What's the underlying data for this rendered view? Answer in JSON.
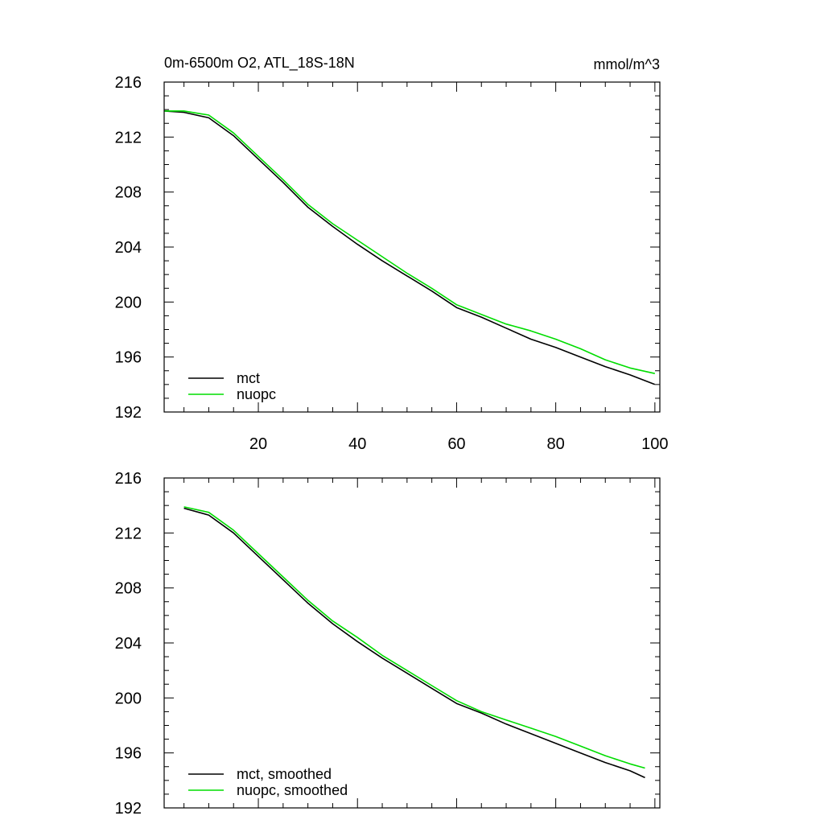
{
  "chart_data": [
    {
      "type": "line",
      "title": "0m-6500m O2, ATL_18S-18N",
      "units": "mmol/m^3",
      "xlabel": "",
      "ylabel": "",
      "xlim": [
        1,
        101
      ],
      "ylim": [
        192,
        216
      ],
      "yticks": [
        "216",
        "212",
        "208",
        "204",
        "200",
        "196",
        "192"
      ],
      "xticks": [
        "20",
        "40",
        "60",
        "80",
        "100"
      ],
      "legend_position": "bottom-left",
      "x": [
        1,
        5,
        10,
        15,
        20,
        25,
        30,
        35,
        40,
        45,
        50,
        55,
        60,
        65,
        70,
        75,
        80,
        85,
        90,
        95,
        100
      ],
      "series": [
        {
          "name": "mct",
          "color": "#000000",
          "values": [
            213.9,
            213.8,
            213.4,
            212.1,
            210.4,
            208.7,
            206.9,
            205.5,
            204.2,
            203.0,
            201.9,
            200.8,
            199.6,
            198.9,
            198.1,
            197.3,
            196.7,
            196.0,
            195.3,
            194.7,
            194.0
          ]
        },
        {
          "name": "nuopc",
          "color": "#00dd00",
          "values": [
            213.9,
            213.9,
            213.6,
            212.3,
            210.6,
            208.9,
            207.1,
            205.7,
            204.5,
            203.3,
            202.1,
            201.0,
            199.8,
            199.1,
            198.4,
            197.9,
            197.3,
            196.6,
            195.8,
            195.2,
            194.8
          ]
        }
      ]
    },
    {
      "type": "line",
      "title": "",
      "xlabel": "",
      "ylabel": "",
      "xlim": [
        1,
        101
      ],
      "ylim": [
        192,
        216
      ],
      "yticks": [
        "216",
        "212",
        "208",
        "204",
        "200",
        "196",
        "192"
      ],
      "xticks": [],
      "legend_position": "bottom-left",
      "x": [
        5,
        10,
        15,
        20,
        25,
        30,
        35,
        40,
        45,
        50,
        55,
        60,
        65,
        70,
        75,
        80,
        85,
        90,
        95,
        98
      ],
      "series": [
        {
          "name": "mct, smoothed",
          "color": "#000000",
          "values": [
            213.8,
            213.3,
            212.0,
            210.3,
            208.6,
            206.9,
            205.4,
            204.1,
            202.9,
            201.8,
            200.7,
            199.6,
            198.9,
            198.1,
            197.4,
            196.7,
            196.0,
            195.3,
            194.7,
            194.2
          ]
        },
        {
          "name": "nuopc, smoothed",
          "color": "#00dd00",
          "values": [
            213.9,
            213.5,
            212.2,
            210.5,
            208.8,
            207.1,
            205.6,
            204.4,
            203.1,
            202.0,
            200.9,
            199.8,
            199.0,
            198.4,
            197.8,
            197.2,
            196.5,
            195.8,
            195.2,
            194.9
          ]
        }
      ]
    }
  ]
}
